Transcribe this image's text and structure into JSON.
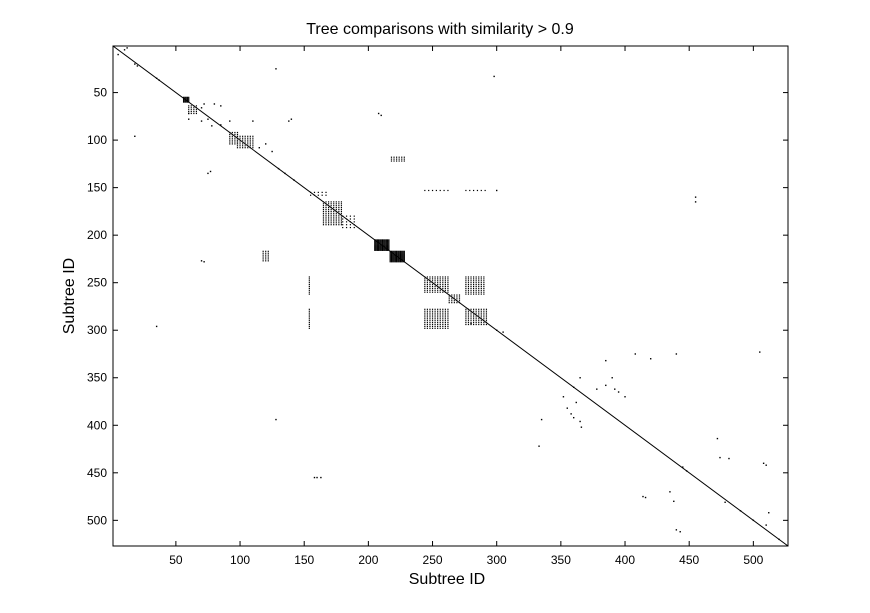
{
  "chart_data": {
    "type": "scatter",
    "title": "Tree comparisons with similarity > 0.9",
    "xlabel": "Subtree ID",
    "ylabel": "Subtree ID",
    "xlim": [
      1,
      527
    ],
    "ylim": [
      1,
      527
    ],
    "y_reversed": true,
    "grid": false,
    "x_ticks": [
      50,
      100,
      150,
      200,
      250,
      300,
      350,
      400,
      450,
      500
    ],
    "y_ticks": [
      50,
      100,
      150,
      200,
      250,
      300,
      350,
      400,
      450,
      500
    ],
    "diagonal": [
      1,
      527
    ],
    "marker_color": "#000000",
    "blocks": [
      {
        "x": [
          56,
          60
        ],
        "y": [
          55,
          60
        ],
        "step": 1
      },
      {
        "x": [
          60,
          66
        ],
        "y": [
          64,
          72
        ],
        "step": 2
      },
      {
        "x": [
          92,
          98
        ],
        "y": [
          92,
          104
        ],
        "step": 2
      },
      {
        "x": [
          98,
          110
        ],
        "y": [
          96,
          108
        ],
        "step": 2
      },
      {
        "x": [
          218,
          228
        ],
        "y": [
          118,
          122
        ],
        "step": 2
      },
      {
        "x": [
          155,
          168
        ],
        "y": [
          155,
          160
        ],
        "step": 3
      },
      {
        "x": [
          165,
          180
        ],
        "y": [
          165,
          190
        ],
        "step": 2
      },
      {
        "x": [
          180,
          190
        ],
        "y": [
          180,
          192
        ],
        "step": 3
      },
      {
        "x": [
          205,
          216
        ],
        "y": [
          205,
          216
        ],
        "step": 1
      },
      {
        "x": [
          217,
          228
        ],
        "y": [
          217,
          228
        ],
        "step": 1
      },
      {
        "x": [
          118,
          122
        ],
        "y": [
          217,
          228
        ],
        "step": 2
      },
      {
        "x": [
          244,
          262
        ],
        "y": [
          244,
          260
        ],
        "step": 2
      },
      {
        "x": [
          276,
          290
        ],
        "y": [
          244,
          262
        ],
        "step": 2
      },
      {
        "x": [
          244,
          262
        ],
        "y": [
          278,
          298
        ],
        "step": 2
      },
      {
        "x": [
          276,
          292
        ],
        "y": [
          278,
          295
        ],
        "step": 2
      },
      {
        "x": [
          263,
          272
        ],
        "y": [
          263,
          272
        ],
        "step": 2
      },
      {
        "x": [
          244,
          262
        ],
        "y": [
          153,
          153
        ],
        "step": 3
      },
      {
        "x": [
          276,
          292
        ],
        "y": [
          153,
          153
        ],
        "step": 3
      },
      {
        "x": [
          154,
          154
        ],
        "y": [
          244,
          262
        ],
        "step": 2
      },
      {
        "x": [
          154,
          154
        ],
        "y": [
          278,
          298
        ],
        "step": 2
      }
    ],
    "points": [
      {
        "x": 10,
        "y": 5
      },
      {
        "x": 12,
        "y": 3
      },
      {
        "x": 5,
        "y": 10
      },
      {
        "x": 20,
        "y": 22
      },
      {
        "x": 18,
        "y": 20
      },
      {
        "x": 35,
        "y": 35
      },
      {
        "x": 37,
        "y": 37
      },
      {
        "x": 128,
        "y": 25
      },
      {
        "x": 298,
        "y": 33
      },
      {
        "x": 72,
        "y": 62
      },
      {
        "x": 70,
        "y": 66
      },
      {
        "x": 80,
        "y": 62
      },
      {
        "x": 85,
        "y": 64
      },
      {
        "x": 60,
        "y": 72
      },
      {
        "x": 60,
        "y": 78
      },
      {
        "x": 70,
        "y": 80
      },
      {
        "x": 75,
        "y": 78
      },
      {
        "x": 85,
        "y": 84
      },
      {
        "x": 78,
        "y": 85
      },
      {
        "x": 92,
        "y": 80
      },
      {
        "x": 110,
        "y": 80
      },
      {
        "x": 18,
        "y": 96
      },
      {
        "x": 208,
        "y": 72
      },
      {
        "x": 210,
        "y": 74
      },
      {
        "x": 140,
        "y": 78
      },
      {
        "x": 138,
        "y": 80
      },
      {
        "x": 120,
        "y": 104
      },
      {
        "x": 115,
        "y": 108
      },
      {
        "x": 125,
        "y": 112
      },
      {
        "x": 75,
        "y": 135
      },
      {
        "x": 77,
        "y": 133
      },
      {
        "x": 135,
        "y": 135
      },
      {
        "x": 130,
        "y": 130
      },
      {
        "x": 142,
        "y": 142
      },
      {
        "x": 70,
        "y": 227
      },
      {
        "x": 72,
        "y": 228
      },
      {
        "x": 300,
        "y": 153
      },
      {
        "x": 35,
        "y": 296
      },
      {
        "x": 280,
        "y": 293
      },
      {
        "x": 300,
        "y": 300
      },
      {
        "x": 305,
        "y": 302
      },
      {
        "x": 128,
        "y": 394
      },
      {
        "x": 158,
        "y": 455
      },
      {
        "x": 160,
        "y": 455
      },
      {
        "x": 163,
        "y": 455
      },
      {
        "x": 455,
        "y": 160
      },
      {
        "x": 455,
        "y": 165
      },
      {
        "x": 408,
        "y": 325
      },
      {
        "x": 420,
        "y": 330
      },
      {
        "x": 440,
        "y": 325
      },
      {
        "x": 505,
        "y": 323
      },
      {
        "x": 385,
        "y": 332
      },
      {
        "x": 360,
        "y": 360
      },
      {
        "x": 365,
        "y": 350
      },
      {
        "x": 378,
        "y": 362
      },
      {
        "x": 385,
        "y": 358
      },
      {
        "x": 390,
        "y": 350
      },
      {
        "x": 392,
        "y": 362
      },
      {
        "x": 395,
        "y": 365
      },
      {
        "x": 400,
        "y": 370
      },
      {
        "x": 362,
        "y": 376
      },
      {
        "x": 358,
        "y": 388
      },
      {
        "x": 360,
        "y": 392
      },
      {
        "x": 365,
        "y": 396
      },
      {
        "x": 366,
        "y": 402
      },
      {
        "x": 352,
        "y": 370
      },
      {
        "x": 355,
        "y": 382
      },
      {
        "x": 335,
        "y": 394
      },
      {
        "x": 333,
        "y": 422
      },
      {
        "x": 472,
        "y": 414
      },
      {
        "x": 474,
        "y": 434
      },
      {
        "x": 481,
        "y": 435
      },
      {
        "x": 508,
        "y": 440
      },
      {
        "x": 510,
        "y": 442
      },
      {
        "x": 414,
        "y": 475
      },
      {
        "x": 416,
        "y": 476
      },
      {
        "x": 435,
        "y": 470
      },
      {
        "x": 438,
        "y": 480
      },
      {
        "x": 440,
        "y": 510
      },
      {
        "x": 443,
        "y": 512
      },
      {
        "x": 478,
        "y": 481
      },
      {
        "x": 490,
        "y": 490
      },
      {
        "x": 500,
        "y": 500
      },
      {
        "x": 510,
        "y": 505
      },
      {
        "x": 512,
        "y": 492
      },
      {
        "x": 520,
        "y": 520
      },
      {
        "x": 445,
        "y": 444
      },
      {
        "x": 448,
        "y": 448
      }
    ]
  }
}
